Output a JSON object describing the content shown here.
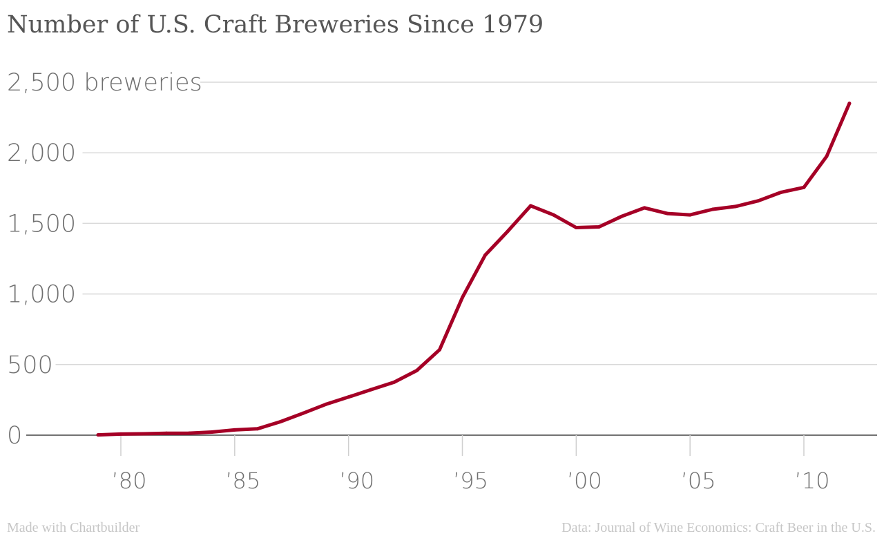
{
  "chart_data": {
    "type": "line",
    "title": "Number of U.S. Craft Breweries Since 1979",
    "ylim": [
      0,
      2500
    ],
    "xlim": [
      1978,
      2013
    ],
    "yticks": [
      {
        "value": 0,
        "label": "0"
      },
      {
        "value": 500,
        "label": "500"
      },
      {
        "value": 1000,
        "label": "1,000"
      },
      {
        "value": 1500,
        "label": "1,500"
      },
      {
        "value": 2000,
        "label": "2,000"
      },
      {
        "value": 2500,
        "label": "2,500 breweries"
      }
    ],
    "xticks": [
      {
        "value": 1980,
        "label": "’80"
      },
      {
        "value": 1985,
        "label": "’85"
      },
      {
        "value": 1990,
        "label": "’90"
      },
      {
        "value": 1995,
        "label": "’95"
      },
      {
        "value": 2000,
        "label": "’00"
      },
      {
        "value": 2005,
        "label": "’05"
      },
      {
        "value": 2010,
        "label": "’10"
      }
    ],
    "grid": true,
    "series": [
      {
        "color": "#a50026",
        "x": [
          1979,
          1980,
          1981,
          1982,
          1983,
          1984,
          1985,
          1986,
          1987,
          1988,
          1989,
          1990,
          1991,
          1992,
          1993,
          1994,
          1995,
          1996,
          1997,
          1998,
          1999,
          2000,
          2001,
          2002,
          2003,
          2004,
          2005,
          2006,
          2007,
          2008,
          2009,
          2010,
          2011,
          2012
        ],
        "values": [
          2,
          8,
          10,
          13,
          14,
          22,
          37,
          45,
          95,
          155,
          218,
          270,
          323,
          375,
          458,
          605,
          975,
          1275,
          1445,
          1625,
          1560,
          1470,
          1475,
          1550,
          1610,
          1570,
          1560,
          1600,
          1620,
          1660,
          1720,
          1755,
          1975,
          2350
        ]
      }
    ]
  },
  "footer": {
    "left": "Made with Chartbuilder",
    "right": "Data: Journal of Wine Economics: Craft Beer in the U.S."
  }
}
